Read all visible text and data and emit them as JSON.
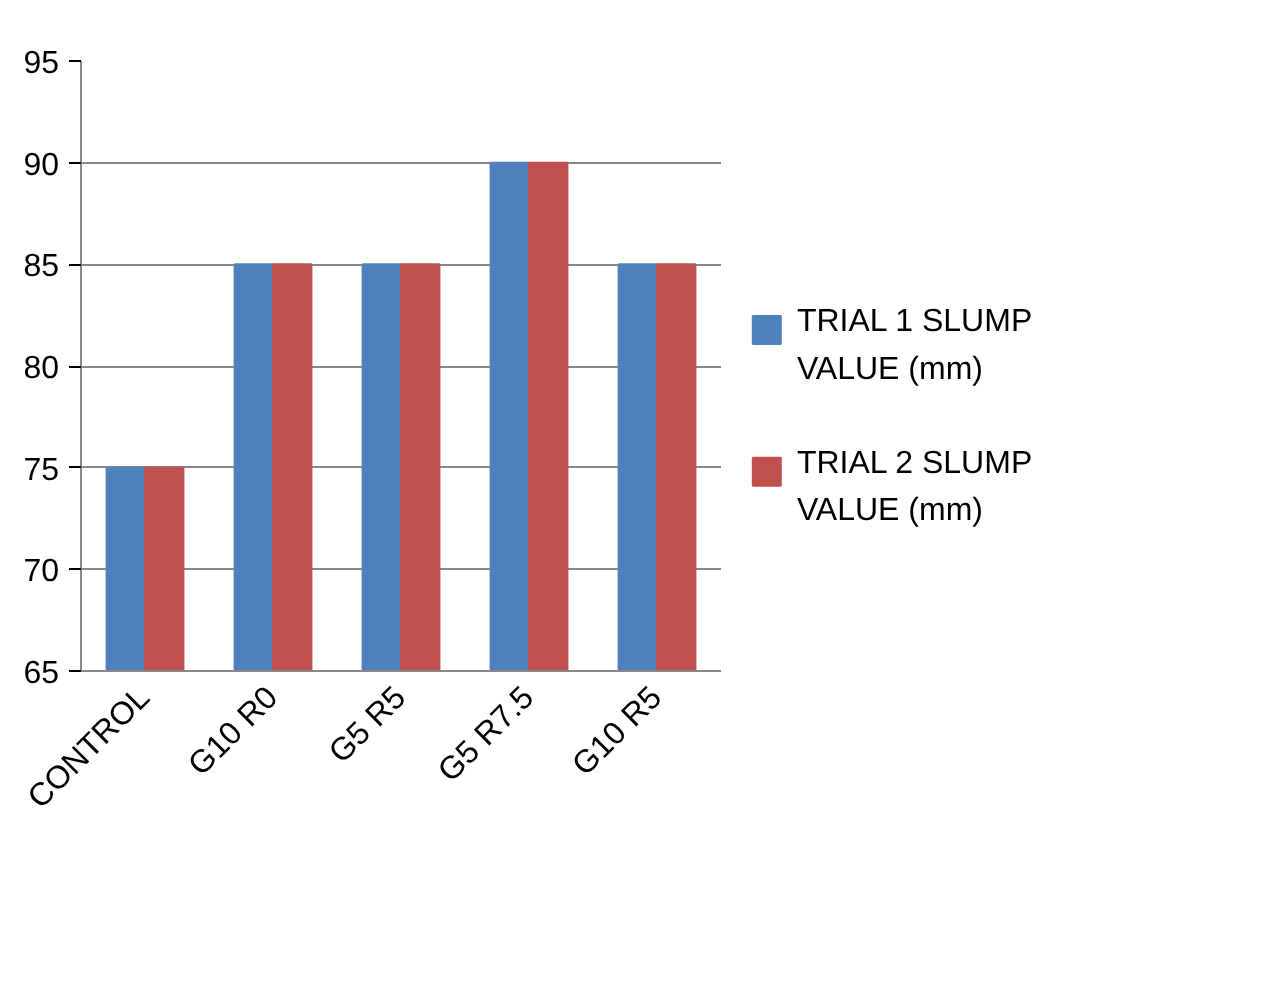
{
  "chart_data": {
    "type": "bar",
    "categories": [
      "CONTROL",
      "G10 R0",
      "G5 R5",
      "G5 R7.5",
      "G10 R5"
    ],
    "series": [
      {
        "name": "TRIAL 1 SLUMP VALUE (mm)",
        "color": "#4f81bd",
        "values": [
          75,
          85,
          85,
          90,
          85
        ]
      },
      {
        "name": "TRIAL 2 SLUMP VALUE (mm)",
        "color": "#c0504d",
        "values": [
          75,
          85,
          85,
          90,
          85
        ]
      }
    ],
    "ylim": [
      65,
      95
    ],
    "yticks": [
      65,
      70,
      75,
      80,
      85,
      90,
      95
    ],
    "grid": "y",
    "legend": "right"
  }
}
